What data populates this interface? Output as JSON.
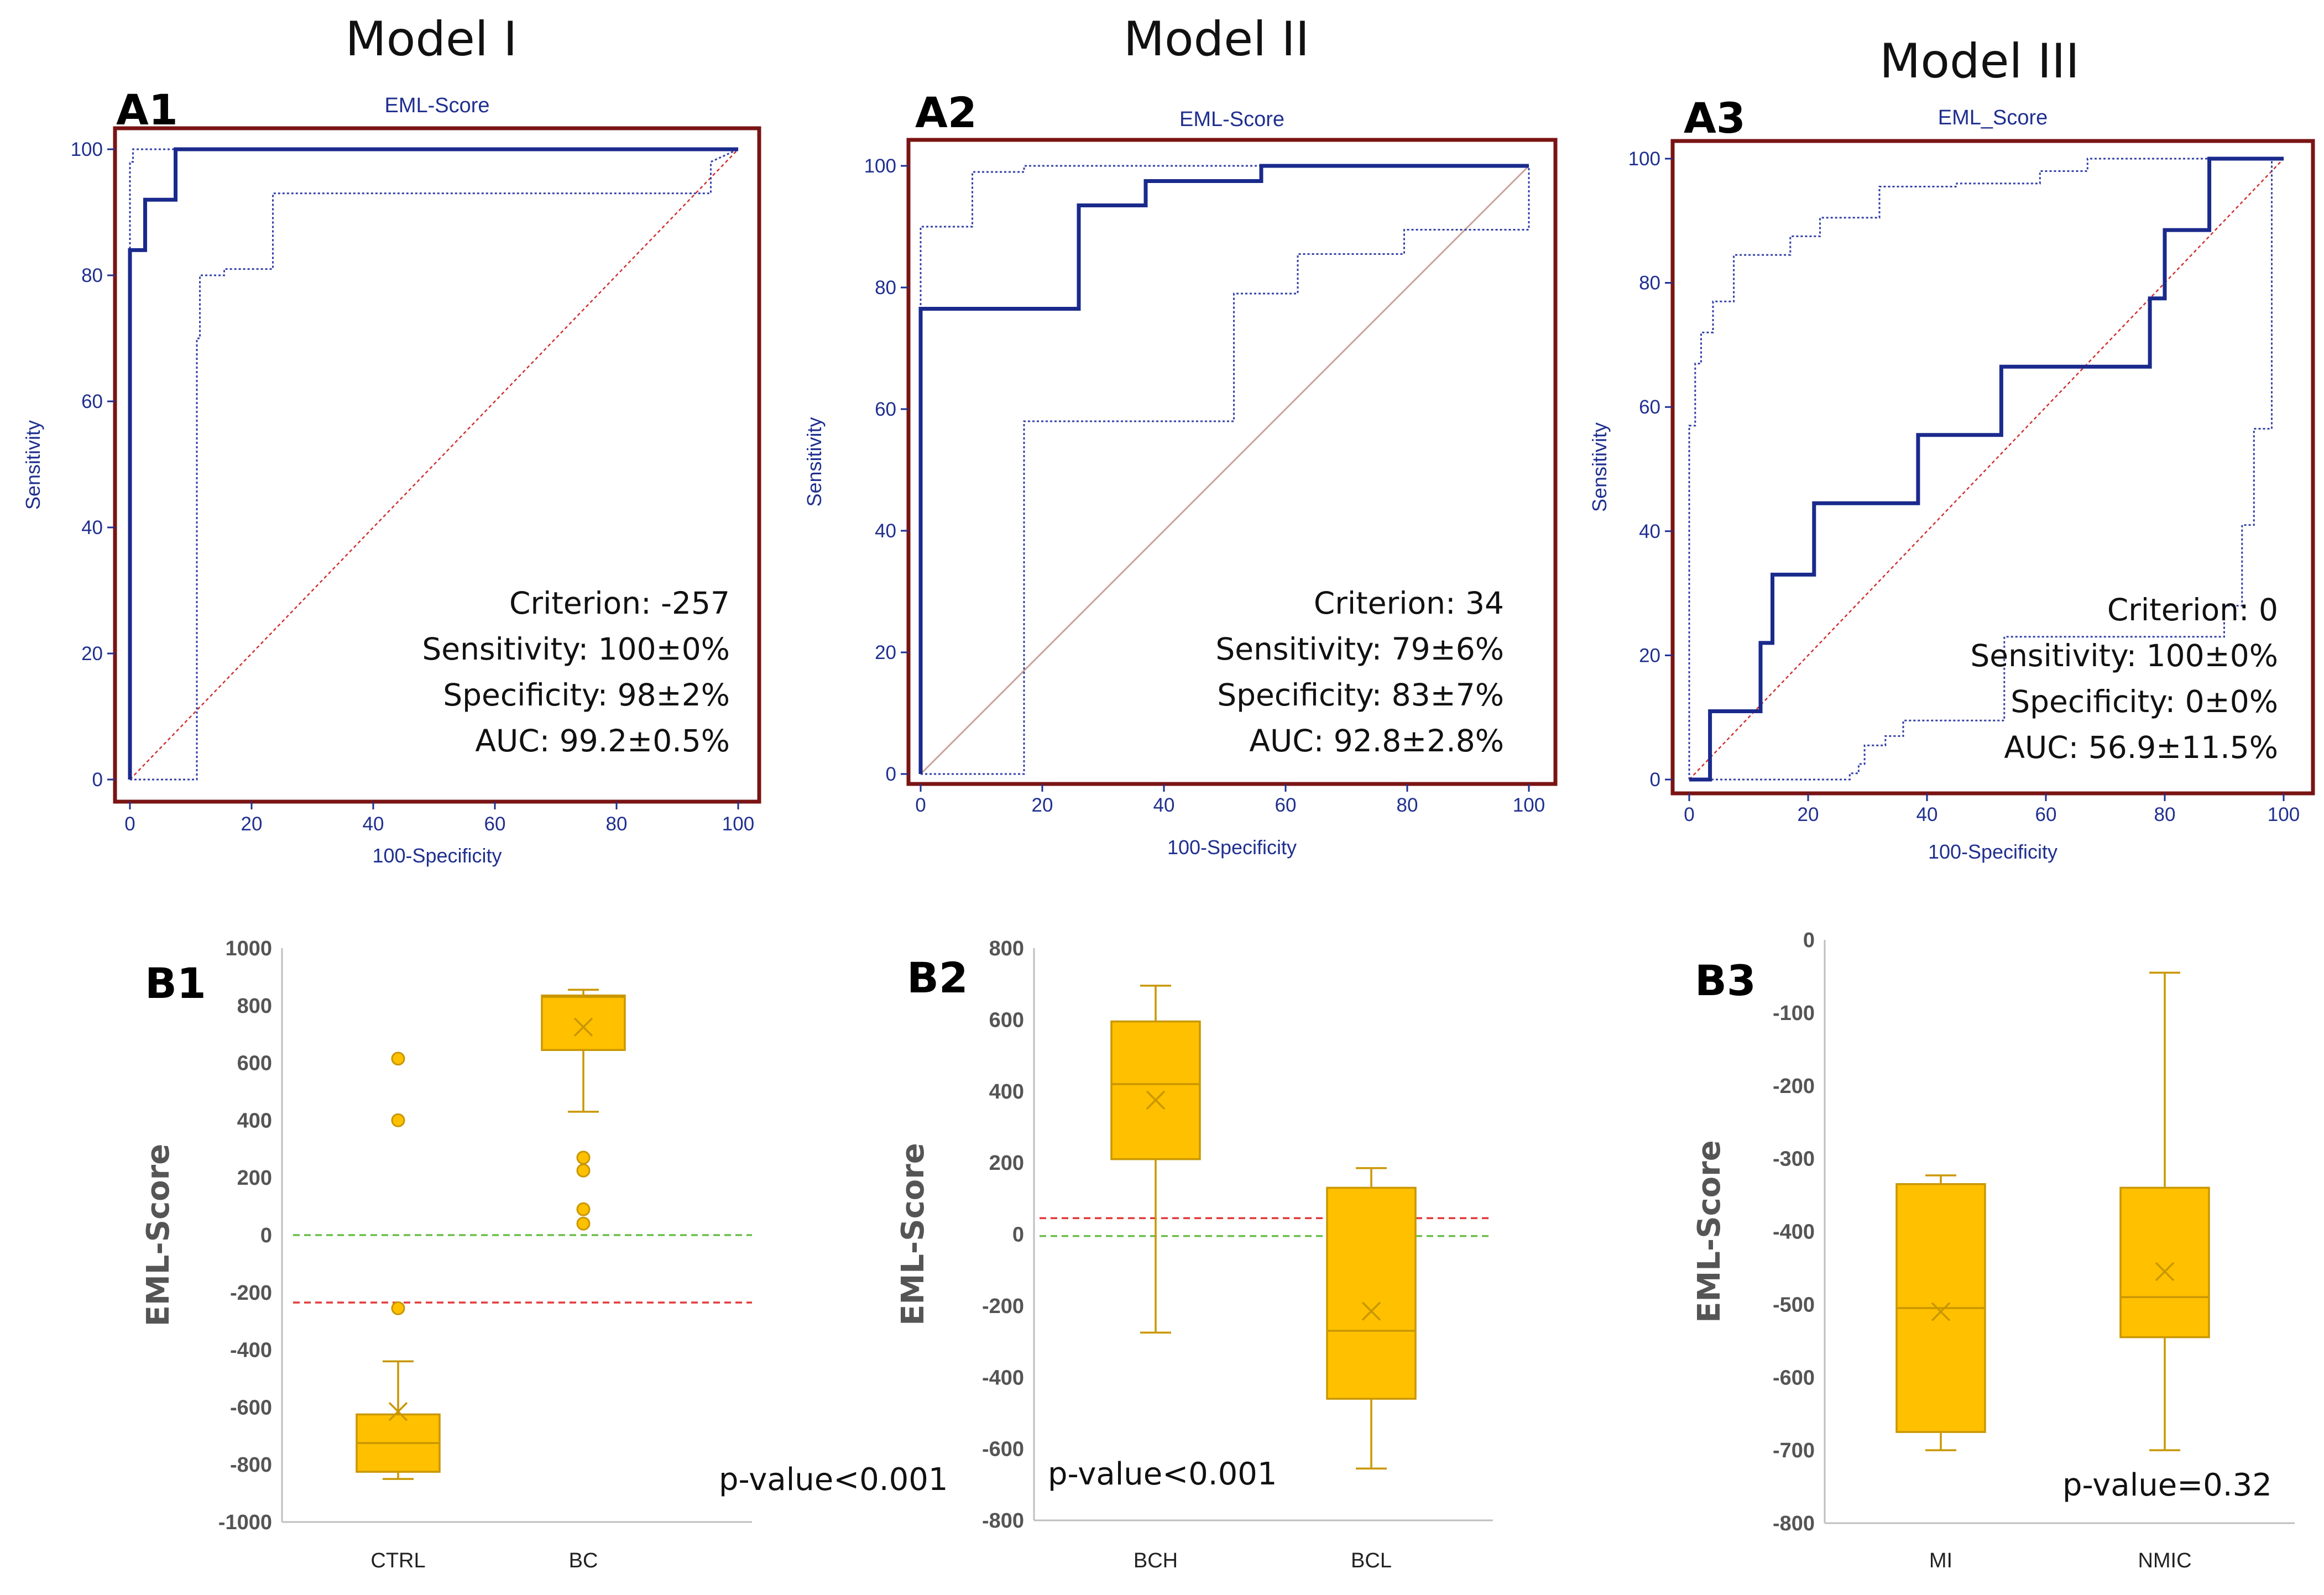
{
  "figure": {
    "model_titles": [
      "Model I",
      "Model II",
      "Model III"
    ]
  },
  "chart_data": [
    {
      "id": "A1",
      "type": "line",
      "title": "EML-Score",
      "xlabel": "100-Specificity",
      "ylabel": "Sensitivity",
      "xlim": [
        0,
        100
      ],
      "ylim": [
        0,
        100
      ],
      "xticks": [
        0,
        20,
        40,
        60,
        80,
        100
      ],
      "yticks": [
        0,
        20,
        40,
        60,
        80,
        100
      ],
      "series": [
        {
          "name": "ROC",
          "style": "roc",
          "x": [
            0,
            0,
            2.5,
            2.5,
            7.5,
            7.5,
            100
          ],
          "y": [
            0,
            84,
            84,
            92,
            92,
            100,
            100
          ]
        },
        {
          "name": "CI upper",
          "style": "ci",
          "x": [
            0,
            0,
            0.5,
            0.5,
            100
          ],
          "y": [
            0,
            98,
            98,
            100,
            100
          ]
        },
        {
          "name": "CI lower",
          "style": "ci",
          "x": [
            0,
            11,
            11,
            11.5,
            11.5,
            15.5,
            15.5,
            23.5,
            23.5,
            95.5,
            95.5,
            100
          ],
          "y": [
            0,
            0,
            70,
            70,
            80,
            80,
            81,
            81,
            93,
            93,
            98,
            100
          ]
        },
        {
          "name": "reference",
          "style": "diag",
          "x": [
            0,
            100
          ],
          "y": [
            0,
            100
          ]
        }
      ],
      "stats": [
        "Criterion: -257",
        "Sensitivity: 100±0%",
        "Specificity: 98±2%",
        "AUC: 99.2±0.5%"
      ]
    },
    {
      "id": "A2",
      "type": "line",
      "title": "EML-Score",
      "xlabel": "100-Specificity",
      "ylabel": "Sensitivity",
      "xlim": [
        0,
        100
      ],
      "ylim": [
        0,
        100
      ],
      "xticks": [
        0,
        20,
        40,
        60,
        80,
        100
      ],
      "yticks": [
        0,
        20,
        40,
        60,
        80,
        100
      ],
      "series": [
        {
          "name": "ROC",
          "style": "roc",
          "x": [
            0,
            0,
            26,
            26,
            37,
            37,
            56,
            56,
            100
          ],
          "y": [
            0,
            76.5,
            76.5,
            93.5,
            93.5,
            97.5,
            97.5,
            100,
            100
          ]
        },
        {
          "name": "CI upper",
          "style": "ci",
          "x": [
            0,
            0,
            8.5,
            8.5,
            17,
            17,
            100
          ],
          "y": [
            0,
            90,
            90,
            99,
            99,
            100,
            100
          ]
        },
        {
          "name": "CI lower",
          "style": "ci",
          "x": [
            0,
            17,
            17,
            51.5,
            51.5,
            62,
            62,
            79.5,
            79.5,
            100,
            100
          ],
          "y": [
            0,
            0,
            58,
            58,
            79,
            79,
            85.5,
            85.5,
            89.5,
            89.5,
            100
          ]
        },
        {
          "name": "reference",
          "style": "diag2",
          "x": [
            0,
            100
          ],
          "y": [
            0,
            100
          ]
        }
      ],
      "stats": [
        "Criterion: 34",
        "Sensitivity: 79±6%",
        "Specificity: 83±7%",
        "AUC: 92.8±2.8%"
      ]
    },
    {
      "id": "A3",
      "type": "line",
      "title": "EML_Score",
      "xlabel": "100-Specificity",
      "ylabel": "Sensitivity",
      "xlim": [
        0,
        100
      ],
      "ylim": [
        0,
        100
      ],
      "xticks": [
        0,
        20,
        40,
        60,
        80,
        100
      ],
      "yticks": [
        0,
        20,
        40,
        60,
        80,
        100
      ],
      "series": [
        {
          "name": "ROC",
          "style": "roc",
          "x": [
            0,
            3.5,
            3.5,
            12,
            12,
            14,
            14,
            21,
            21,
            38.5,
            38.5,
            52.5,
            52.5,
            77.5,
            77.5,
            80,
            80,
            87.5,
            87.5,
            100
          ],
          "y": [
            0,
            0,
            11,
            11,
            22,
            22,
            33,
            33,
            44.5,
            44.5,
            55.5,
            55.5,
            66.5,
            66.5,
            77.5,
            77.5,
            88.5,
            88.5,
            100,
            100
          ]
        },
        {
          "name": "CI upper",
          "style": "ci",
          "x": [
            0,
            0,
            1,
            1,
            2,
            2,
            4,
            4,
            5,
            5,
            7.5,
            7.5,
            17,
            17,
            22,
            22,
            32,
            32,
            45,
            45,
            59,
            59,
            67,
            67,
            100
          ],
          "y": [
            0,
            57,
            57,
            67,
            67,
            72,
            72,
            77,
            77,
            77,
            77,
            84.5,
            84.5,
            87.5,
            87.5,
            90.5,
            90.5,
            95.5,
            95.5,
            96,
            96,
            98,
            98,
            100,
            100
          ]
        },
        {
          "name": "CI lower",
          "style": "ci",
          "x": [
            0,
            27,
            27,
            28.5,
            28.5,
            29.5,
            29.5,
            33,
            33,
            36,
            36,
            53,
            53,
            90,
            90,
            93,
            93,
            95,
            95,
            98,
            98,
            100
          ],
          "y": [
            0,
            0,
            1,
            1,
            2.5,
            2.5,
            5.5,
            5.5,
            7,
            7,
            9.5,
            9.5,
            23,
            23,
            28,
            28,
            41,
            41,
            56.5,
            56.5,
            100,
            100
          ]
        },
        {
          "name": "reference",
          "style": "diag",
          "x": [
            0,
            100
          ],
          "y": [
            0,
            100
          ]
        }
      ],
      "stats": [
        "Criterion: 0",
        "Sensitivity: 100±0%",
        "Specificity: 0±0%",
        "AUC: 56.9±11.5%"
      ]
    },
    {
      "id": "B1",
      "type": "box",
      "ylabel": "EML-Score",
      "ylim": [
        -1000,
        1000
      ],
      "yticks": [
        -1000,
        -800,
        -600,
        -400,
        -200,
        0,
        200,
        400,
        600,
        800,
        1000
      ],
      "categories": [
        "CTRL",
        "BC"
      ],
      "boxes": [
        {
          "category": "CTRL",
          "min": -850,
          "q1": -825,
          "median": -725,
          "mean": -615,
          "q3": -625,
          "max": -440,
          "outliers": [
            615,
            400,
            -255
          ]
        },
        {
          "category": "BC",
          "min": 430,
          "q1": 645,
          "median": 830,
          "mean": 725,
          "q3": 835,
          "max": 855,
          "outliers": [
            270,
            225,
            90,
            40
          ]
        }
      ],
      "ref_lines": [
        {
          "color": "#6bbf4a",
          "y": 0
        },
        {
          "color": "#e23a3a",
          "y": -235
        }
      ],
      "p_value": "p-value<0.001"
    },
    {
      "id": "B2",
      "type": "box",
      "ylabel": "EML-Score",
      "ylim": [
        -800,
        800
      ],
      "yticks": [
        -800,
        -600,
        -400,
        -200,
        0,
        200,
        400,
        600,
        800
      ],
      "categories": [
        "BCH",
        "BCL"
      ],
      "boxes": [
        {
          "category": "BCH",
          "min": -275,
          "q1": 210,
          "median": 420,
          "mean": 375,
          "q3": 595,
          "max": 695,
          "outliers": []
        },
        {
          "category": "BCL",
          "min": -655,
          "q1": -460,
          "median": -270,
          "mean": -215,
          "q3": 130,
          "max": 185,
          "outliers": []
        }
      ],
      "ref_lines": [
        {
          "color": "#e23a3a",
          "y": 45
        },
        {
          "color": "#6bbf4a",
          "y": -5
        }
      ],
      "p_value": "p-value<0.001"
    },
    {
      "id": "B3",
      "type": "box",
      "ylabel": "EML-Score",
      "ylim": [
        -800,
        0
      ],
      "yticks": [
        -800,
        -700,
        -600,
        -500,
        -400,
        -300,
        -200,
        -100,
        0
      ],
      "categories": [
        "MI",
        "NMIC"
      ],
      "boxes": [
        {
          "category": "MI",
          "min": -700,
          "q1": -675,
          "median": -505,
          "mean": -510,
          "q3": -335,
          "max": -323,
          "outliers": []
        },
        {
          "category": "NMIC",
          "min": -700,
          "q1": -545,
          "median": -490,
          "mean": -455,
          "q3": -340,
          "max": -45,
          "outliers": []
        }
      ],
      "ref_lines": [],
      "p_value": "p-value=0.32"
    }
  ]
}
